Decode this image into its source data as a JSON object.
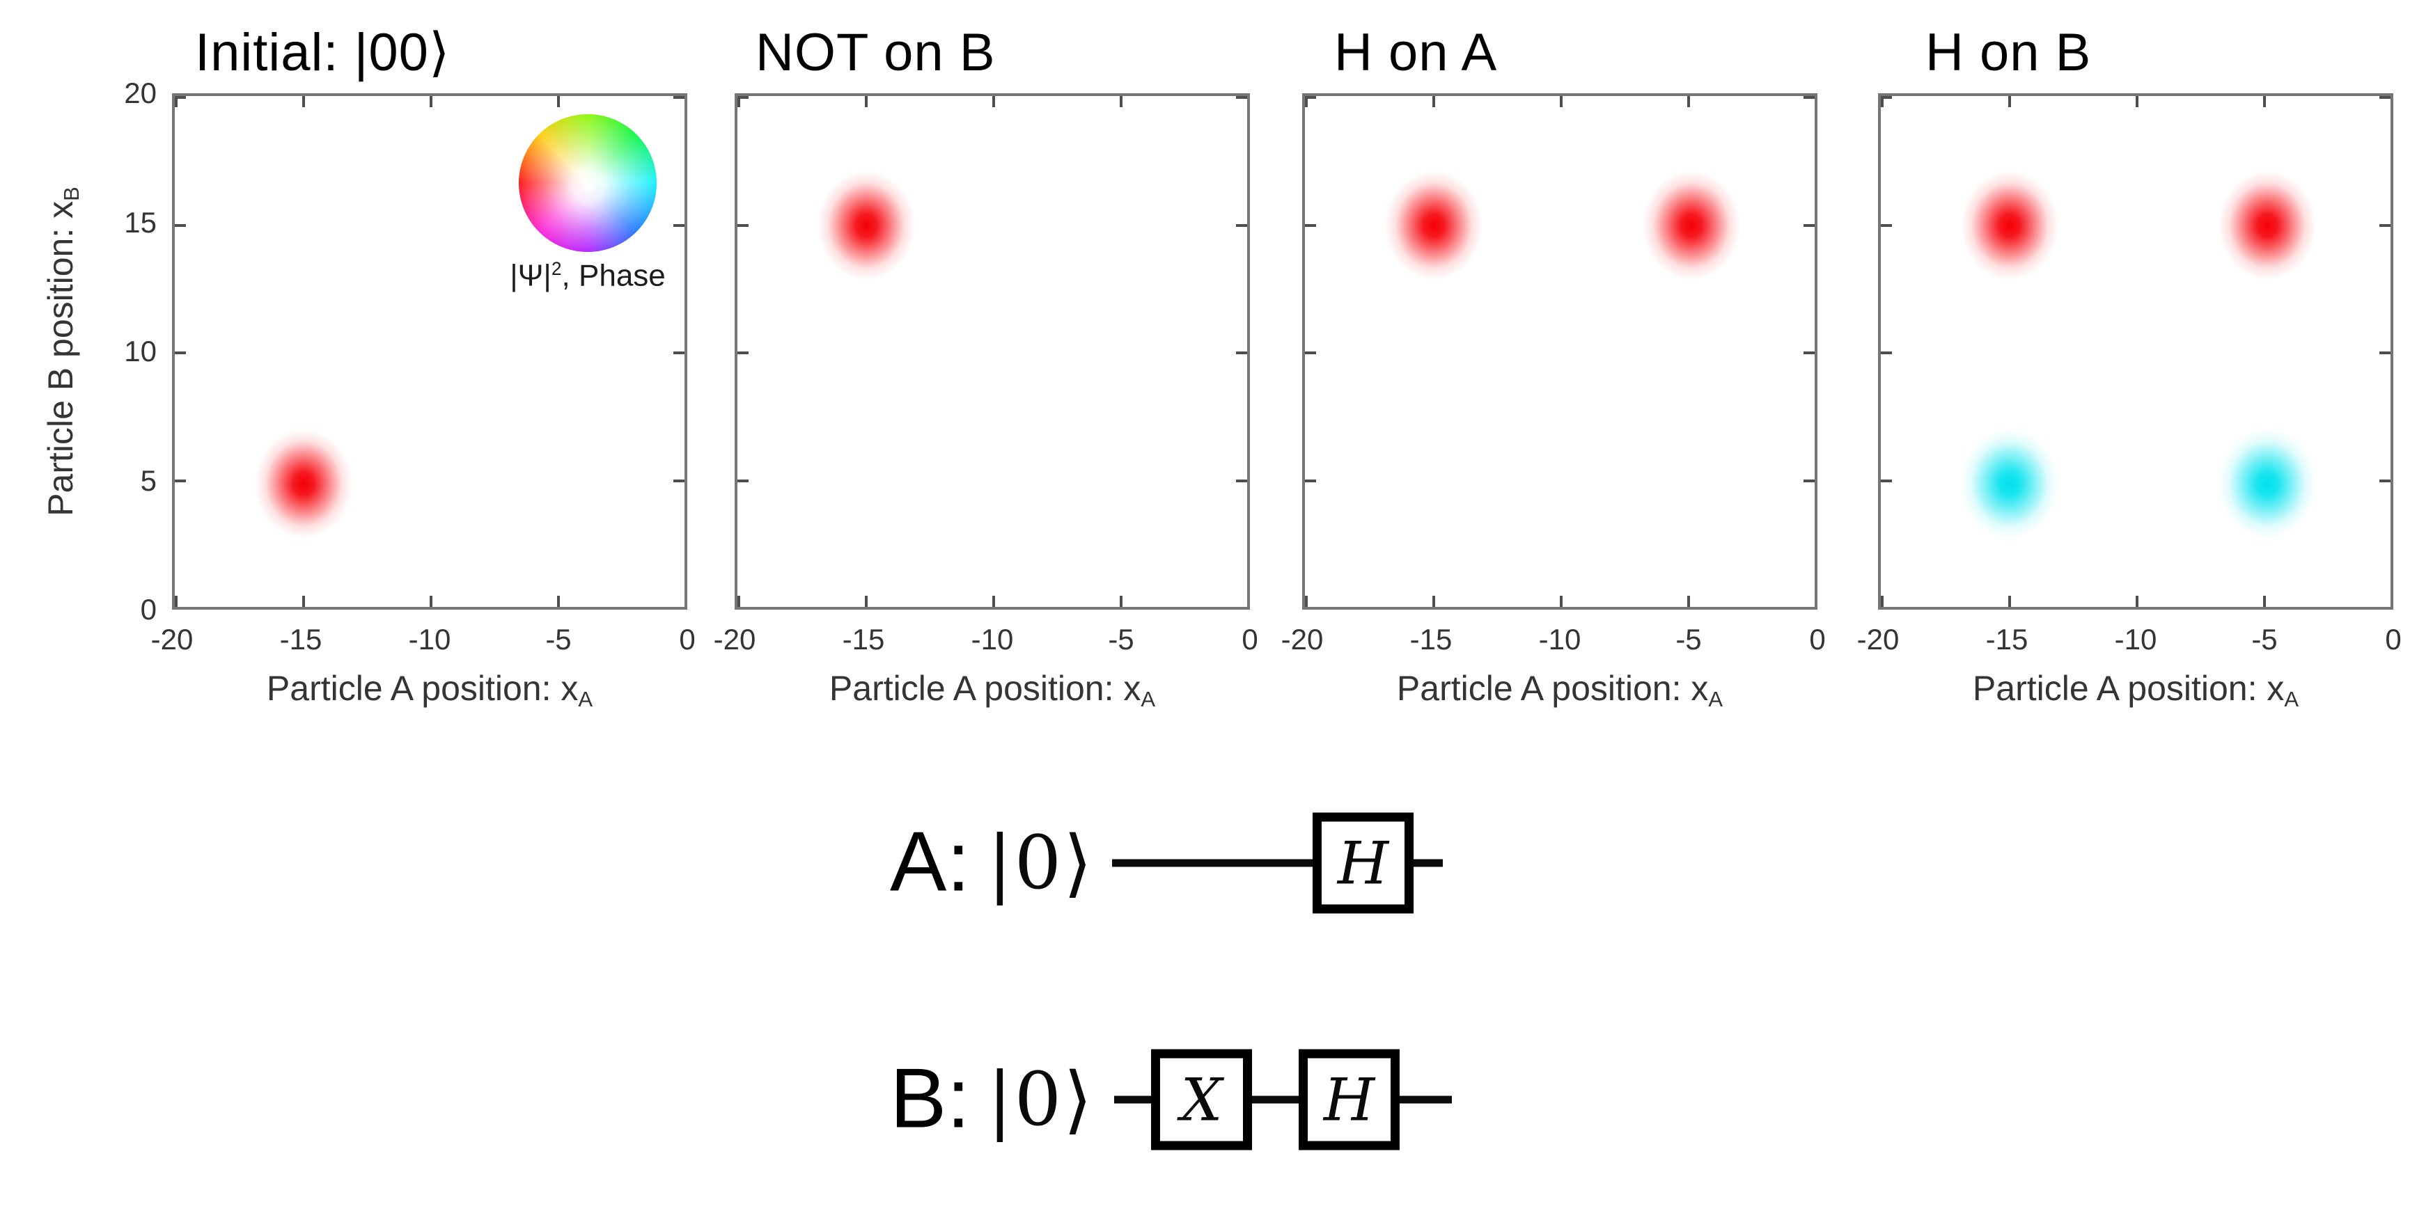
{
  "figure_background": "#ffffff",
  "phase_colors": {
    "phase_0": "#f50008",
    "phase_pi": "#00e2ee"
  },
  "phase_wheel": {
    "label_psi": "|Ψ|",
    "label_sup": "2",
    "label_rest": ", Phase",
    "conic_stops_clockwise_from_top": [
      "#86f500",
      "#00f53c",
      "#00eeff",
      "#0064ff",
      "#a500ff",
      "#ff00d0",
      "#ff0000",
      "#ffc800"
    ]
  },
  "chart_data": {
    "type": "heatmap",
    "description": "Two-particle wavefunction |Psi|^2 in joint position space; blob hue encodes complex phase (red = 0, cyan = pi), white = zero amplitude",
    "xlabel_main": "Particle A position: x",
    "xlabel_sub": "A",
    "ylabel_main": "Particle B position: x",
    "ylabel_sub": "B",
    "xlim": [
      -20,
      0
    ],
    "ylim": [
      0,
      20
    ],
    "xticks": [
      -20,
      -15,
      -10,
      -5,
      0
    ],
    "yticks": [
      0,
      5,
      10,
      15,
      20
    ],
    "xtick_labels": [
      "-20",
      "-15",
      "-10",
      "-5",
      "0"
    ],
    "ytick_labels": [
      "0",
      "5",
      "10",
      "15",
      "20"
    ],
    "grid": false,
    "subplots": [
      {
        "title": "Initial: |00⟩",
        "blobs": [
          {
            "xA": -15,
            "xB": 5,
            "phase": "0",
            "color": "#f50008"
          }
        ]
      },
      {
        "title": "NOT on B",
        "blobs": [
          {
            "xA": -15,
            "xB": 15,
            "phase": "0",
            "color": "#f50008"
          }
        ]
      },
      {
        "title": "H on A",
        "blobs": [
          {
            "xA": -15,
            "xB": 15,
            "phase": "0",
            "color": "#f50008"
          },
          {
            "xA": -5,
            "xB": 15,
            "phase": "0",
            "color": "#f50008"
          }
        ]
      },
      {
        "title": "H on B",
        "blobs": [
          {
            "xA": -15,
            "xB": 15,
            "phase": "0",
            "color": "#f50008"
          },
          {
            "xA": -5,
            "xB": 15,
            "phase": "0",
            "color": "#f50008"
          },
          {
            "xA": -15,
            "xB": 5,
            "phase": "pi",
            "color": "#00e2ee"
          },
          {
            "xA": -5,
            "xB": 5,
            "phase": "pi",
            "color": "#00e2ee"
          }
        ]
      }
    ]
  },
  "circuits": [
    {
      "label": "A:",
      "ket": "|0⟩",
      "gates": [
        "H"
      ]
    },
    {
      "label": "B:",
      "ket": "|0⟩",
      "gates": [
        "X",
        "H"
      ]
    }
  ]
}
